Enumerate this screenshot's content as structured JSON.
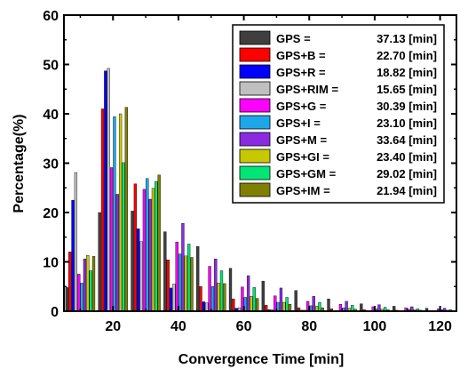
{
  "chart_data": {
    "type": "bar",
    "xlabel": "Convergence Time [min]",
    "ylabel": "Percentage(%)",
    "xlim": [
      5,
      125
    ],
    "ylim": [
      0,
      60
    ],
    "xticks": [
      20,
      40,
      60,
      80,
      100,
      120
    ],
    "yticks": [
      0,
      10,
      20,
      30,
      40,
      50,
      60
    ],
    "bin_centers": [
      10,
      20,
      30,
      40,
      50,
      60,
      70,
      80,
      90,
      100,
      110,
      120
    ],
    "legend_position": "top-right",
    "series": [
      {
        "name": "GPS =",
        "stat": "37.13 [min]",
        "color": "#3f3f3f",
        "values": [
          4.8,
          20.0,
          20.3,
          16.1,
          13.1,
          8.7,
          6.1,
          4.2,
          2.5,
          1.5,
          1.0,
          0.6
        ]
      },
      {
        "name": "GPS+B =",
        "stat": "22.70 [min]",
        "color": "#ff0000",
        "values": [
          12.0,
          41.0,
          25.8,
          10.4,
          5.0,
          2.5,
          1.2,
          0.7,
          0.5,
          0.3,
          0.2,
          0.1
        ]
      },
      {
        "name": "GPS+R =",
        "stat": "18.82 [min]",
        "color": "#0000ff",
        "values": [
          22.5,
          48.7,
          16.7,
          4.7,
          1.9,
          0.6,
          0.3,
          0.2,
          0.1,
          0.1,
          0.1,
          0.1
        ]
      },
      {
        "name": "GPS+RIM =",
        "stat": "15.65 [min]",
        "color": "#c0c0c0",
        "values": [
          28.1,
          49.2,
          14.1,
          5.5,
          1.7,
          0.7,
          0.3,
          0.2,
          0.1,
          0.1,
          0.1,
          0.1
        ]
      },
      {
        "name": "GPS+G =",
        "stat": "30.39 [min]",
        "color": "#ff00ff",
        "values": [
          7.5,
          29.1,
          24.7,
          14.0,
          9.1,
          4.9,
          3.1,
          2.0,
          1.4,
          0.9,
          0.7,
          0.5
        ]
      },
      {
        "name": "GPS+I =",
        "stat": "23.10 [min]",
        "color": "#1ea7e8",
        "values": [
          5.7,
          39.4,
          26.9,
          11.6,
          5.0,
          2.8,
          1.8,
          1.1,
          0.7,
          0.5,
          0.4,
          0.3
        ]
      },
      {
        "name": "GPS+M =",
        "stat": "33.64 [min]",
        "color": "#8a2be2",
        "values": [
          10.6,
          23.7,
          22.7,
          17.8,
          10.6,
          7.2,
          4.7,
          3.0,
          2.0,
          1.3,
          0.9,
          0.6
        ]
      },
      {
        "name": "GPS+GI =",
        "stat": "23.40 [min]",
        "color": "#c8c800",
        "values": [
          11.3,
          40.0,
          24.9,
          11.2,
          5.7,
          3.0,
          1.8,
          1.0,
          0.6,
          0.4,
          0.3,
          0.2
        ]
      },
      {
        "name": "GPS+GM =",
        "stat": "29.02 [min]",
        "color": "#00e676",
        "values": [
          8.2,
          30.1,
          26.3,
          13.6,
          8.2,
          4.8,
          2.8,
          1.8,
          1.2,
          0.8,
          0.5,
          0.3
        ]
      },
      {
        "name": "GPS+IM =",
        "stat": "21.94 [min]",
        "color": "#808000",
        "values": [
          11.1,
          41.3,
          27.6,
          10.9,
          5.6,
          2.6,
          1.4,
          0.7,
          0.4,
          0.3,
          0.2,
          0.1
        ]
      }
    ]
  }
}
